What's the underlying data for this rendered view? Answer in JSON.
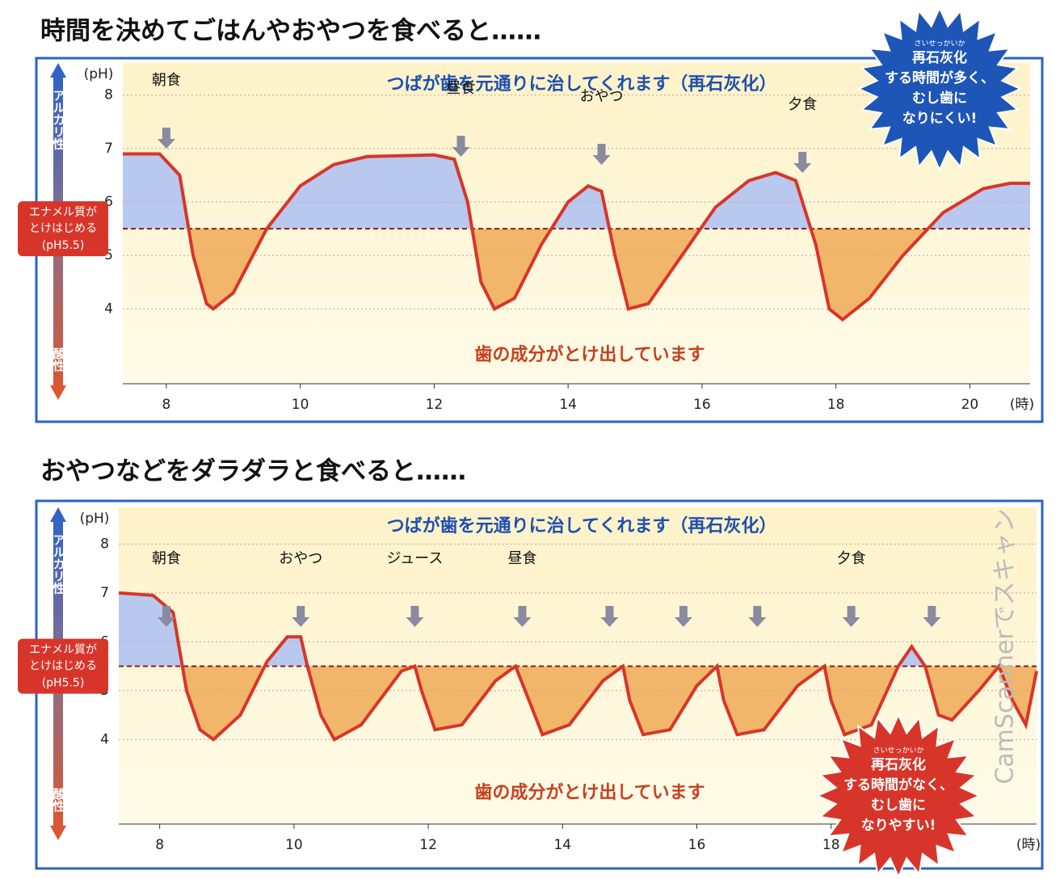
{
  "chart_data": [
    {
      "type": "line",
      "title": "時間を決めてごはんやおやつを食べると……",
      "color": "#d8352a",
      "x": [
        7.35,
        7.9,
        8.2,
        8.4,
        8.6,
        8.7,
        9.0,
        9.5,
        10.0,
        10.5,
        11.0,
        12.0,
        12.3,
        12.5,
        12.7,
        12.9,
        13.2,
        13.6,
        14.0,
        14.3,
        14.5,
        14.7,
        14.9,
        15.2,
        15.7,
        16.2,
        16.7,
        17.1,
        17.4,
        17.7,
        17.9,
        18.1,
        18.5,
        19.0,
        19.6,
        20.2,
        20.6,
        20.9
      ],
      "values": [
        6.9,
        6.9,
        6.5,
        5.0,
        4.1,
        4.0,
        4.3,
        5.5,
        6.3,
        6.7,
        6.85,
        6.88,
        6.8,
        6.0,
        4.5,
        4.0,
        4.2,
        5.2,
        6.0,
        6.3,
        6.2,
        5.0,
        4.0,
        4.1,
        5.0,
        5.9,
        6.4,
        6.55,
        6.4,
        5.2,
        4.0,
        3.8,
        4.2,
        5.0,
        5.8,
        6.25,
        6.35,
        6.35
      ],
      "xlim": [
        7.35,
        20.9
      ],
      "xticks": [
        8,
        10,
        12,
        14,
        16,
        18,
        20
      ],
      "ylim": [
        2.6,
        8.6
      ],
      "yticks": [
        4,
        5,
        6,
        7,
        8
      ],
      "y_unit": "(pH)",
      "x_unit": "(時)",
      "y_label_top": "アルカリ性",
      "y_label_bottom": "酸性",
      "threshold": 5.5,
      "threshold_label": [
        "エナメル質が",
        "とけはじめる"
      ],
      "threshold_value_label": "(pH5.5)",
      "band_upper": "つばが歯を元通りに治してくれます（再石灰化）",
      "band_lower": "歯の成分がとけ出しています",
      "events": [
        {
          "label": "朝食",
          "x": 8.0
        },
        {
          "label": "昼食",
          "x": 12.4
        },
        {
          "label": "おやつ",
          "x": 14.5
        },
        {
          "label": "夕食",
          "x": 17.5
        }
      ],
      "badge": {
        "ruby": "さいせっかいか",
        "lines": [
          "再石灰化",
          "する時間が多く、",
          "むし歯に",
          "なりにくい!"
        ],
        "color": "#1e56b8"
      }
    },
    {
      "type": "line",
      "title": "おやつなどをダラダラと食べると……",
      "color": "#d8352a",
      "x": [
        7.39,
        7.9,
        8.2,
        8.4,
        8.6,
        8.8,
        9.2,
        9.6,
        9.9,
        10.1,
        10.2,
        10.4,
        10.6,
        11.0,
        11.6,
        11.8,
        11.9,
        12.1,
        12.5,
        13.0,
        13.3,
        13.5,
        13.7,
        14.1,
        14.6,
        14.9,
        15.0,
        15.2,
        15.6,
        16.0,
        16.3,
        16.4,
        16.6,
        17.0,
        17.5,
        17.9,
        18.0,
        18.2,
        18.6,
        19.0,
        19.2,
        19.4,
        19.6,
        19.8,
        20.2,
        20.5,
        20.7,
        20.9,
        21.06
      ],
      "values": [
        7.0,
        6.95,
        6.6,
        5.0,
        4.2,
        4.0,
        4.5,
        5.6,
        6.1,
        6.1,
        5.5,
        4.5,
        4.0,
        4.3,
        5.4,
        5.5,
        5.0,
        4.2,
        4.3,
        5.2,
        5.5,
        4.8,
        4.1,
        4.3,
        5.2,
        5.5,
        4.8,
        4.1,
        4.2,
        5.1,
        5.5,
        4.8,
        4.1,
        4.2,
        5.1,
        5.5,
        4.8,
        4.1,
        4.3,
        5.5,
        5.9,
        5.5,
        4.5,
        4.4,
        5.0,
        5.5,
        4.8,
        4.3,
        5.4
      ],
      "xlim": [
        7.39,
        21.06
      ],
      "xticks": [
        8,
        10,
        12,
        14,
        16,
        18
      ],
      "ylim": [
        2.27,
        8.75
      ],
      "yticks": [
        4,
        5,
        6,
        7,
        8
      ],
      "y_unit": "(pH)",
      "x_unit": "(時)",
      "y_label_top": "アルカリ性",
      "y_label_bottom": "酸性",
      "threshold": 5.5,
      "threshold_label": [
        "エナメル質が",
        "とけはじめる"
      ],
      "threshold_value_label": "(pH5.5)",
      "band_upper": "つばが歯を元通りに治してくれます（再石灰化）",
      "band_lower": "歯の成分がとけ出しています",
      "events": [
        {
          "label": "朝食",
          "x": 8.1
        },
        {
          "label": "おやつ",
          "x": 10.1
        },
        {
          "label": "ジュース",
          "x": 11.8
        },
        {
          "label": "昼食",
          "x": 13.4
        },
        {
          "label": null,
          "x": 14.7
        },
        {
          "label": null,
          "x": 15.8
        },
        {
          "label": null,
          "x": 16.9
        },
        {
          "label": "夕食",
          "x": 18.3
        },
        {
          "label": null,
          "x": 19.5
        }
      ],
      "badge": {
        "ruby": "さいせっかいか",
        "lines": [
          "再石灰化",
          "する時間がなく、",
          "むし歯に",
          "なりやすい!"
        ],
        "color": "#d8352a"
      }
    }
  ],
  "watermark": "CamScannerでスキャン"
}
